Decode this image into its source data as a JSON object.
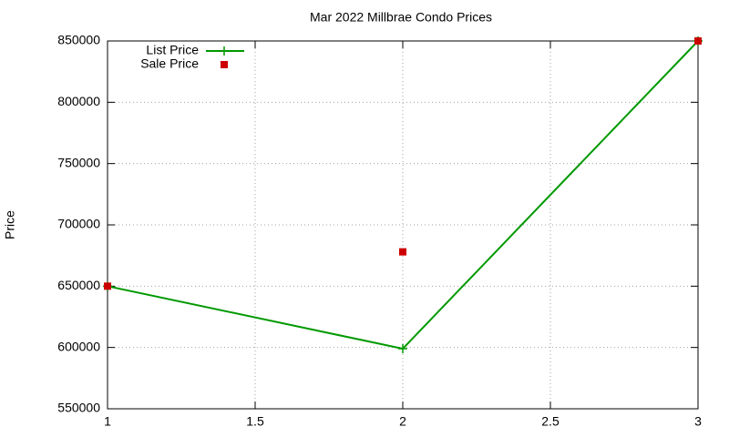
{
  "chart_data": {
    "type": "line",
    "title": "Mar 2022 Millbrae Condo Prices",
    "y_label": "Price",
    "x": [
      1,
      2,
      3
    ],
    "series": [
      {
        "name": "List Price",
        "color": "#009900",
        "style": "linespoints",
        "marker": "plus",
        "values": [
          650000,
          599000,
          850000
        ]
      },
      {
        "name": "Sale Price",
        "color": "#cc0000",
        "style": "points",
        "marker": "square",
        "values": [
          650000,
          678000,
          850000
        ]
      }
    ],
    "xlim": [
      1,
      3
    ],
    "xticks": [
      1,
      1.5,
      2,
      2.5,
      3
    ],
    "ylim": [
      550000,
      850000
    ],
    "yticks": [
      550000,
      600000,
      650000,
      700000,
      750000,
      800000,
      850000
    ],
    "grid": true,
    "legend": "top-left"
  }
}
